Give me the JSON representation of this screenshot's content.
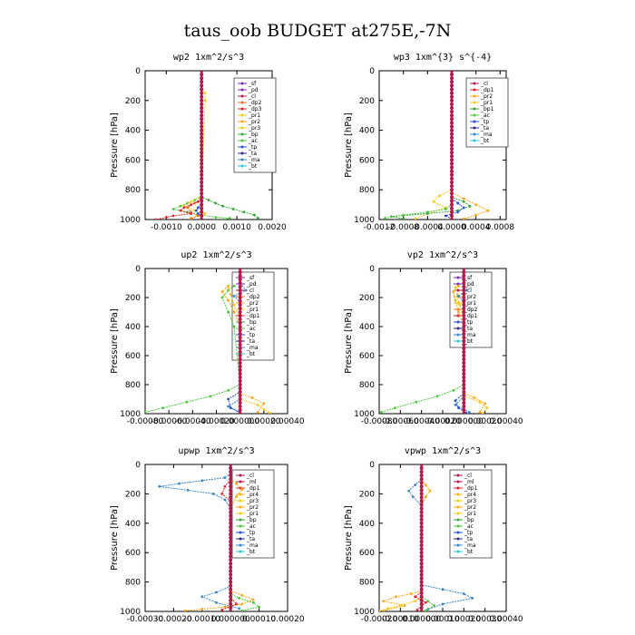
{
  "figure_title": "taus_oob  BUDGET at275E,-7N",
  "colors": {
    "sf": "#7a28b8",
    "pd": "#7a28b8",
    "cl": "#b01c4a",
    "ml": "#b01c4a",
    "dp1": "#e0242e",
    "dp2": "#f0722a",
    "dp3": "#e0242e",
    "dp4": "#e0242e",
    "pr1": "#f8c820",
    "pr2": "#f8a818",
    "pr3": "#e8d020",
    "pr4": "#f0b020",
    "bp": "#38a838",
    "bp1": "#38a838",
    "ac": "#50c840",
    "tp": "#2850d8",
    "ta": "#282890",
    "ma": "#3888c8",
    "bt": "#28c8e0"
  },
  "chart_data": [
    {
      "type": "line",
      "title": "wp2  1xm^2/s^3",
      "ylabel": "Pressure [hPa]",
      "xlim": [
        -0.0016,
        0.002
      ],
      "ylim": [
        1000,
        0
      ],
      "xticks": [
        -0.001,
        0.0,
        0.001,
        0.002
      ],
      "xtick_labels": [
        "-0.0010",
        "0.0000",
        "0.0010",
        "0.0020"
      ],
      "yticks": [
        0,
        200,
        400,
        600,
        800,
        1000
      ],
      "ytick_labels": [
        "0",
        "200",
        "400",
        "600",
        "800",
        "1000"
      ],
      "legend": [
        "_sf",
        "_pd",
        "_cl",
        "_dp2",
        "_dp3",
        "_pr1",
        "_pr2",
        "_pr3",
        "_bp",
        "_ac",
        "_tp",
        "_ta",
        "_ma",
        "_bt"
      ],
      "series": [
        {
          "name": "_bp",
          "key": "bp",
          "x": [
            0,
            0,
            0.0002,
            0.0004,
            0.0006,
            0.0009,
            0.0012,
            0.0015,
            0.0016
          ],
          "y": [
            0,
            850,
            870,
            890,
            910,
            930,
            950,
            970,
            990
          ]
        },
        {
          "name": "_ac",
          "key": "ac",
          "x": [
            0,
            0,
            -0.0002,
            -0.0004,
            -0.0006,
            -0.0008,
            -0.0004,
            0,
            0.0004,
            0.0008,
            0.0006
          ],
          "y": [
            0,
            845,
            870,
            890,
            910,
            930,
            950,
            970,
            985,
            990,
            1000
          ]
        },
        {
          "name": "_pr1",
          "key": "pr1",
          "x": [
            0,
            0.0001,
            0.0001,
            0,
            -0.0003,
            -0.0005,
            -0.0002,
            0.0001,
            -0.0003
          ],
          "y": [
            120,
            150,
            200,
            840,
            880,
            910,
            940,
            960,
            990
          ]
        },
        {
          "name": "_dp2",
          "key": "dp2",
          "x": [
            0,
            0,
            -0.0002,
            -0.0004,
            -0.0003,
            -0.0001,
            -0.0003
          ],
          "y": [
            0,
            860,
            890,
            920,
            950,
            975,
            995
          ]
        },
        {
          "name": "_dp3",
          "key": "dp3",
          "x": [
            0,
            0,
            -0.0001,
            -0.0003,
            -0.0005,
            -0.0006,
            -0.0003,
            -0.0008,
            -0.001,
            -0.0013
          ],
          "y": [
            0,
            850,
            880,
            900,
            920,
            940,
            960,
            975,
            985,
            1000
          ]
        },
        {
          "name": "_tp",
          "key": "tp",
          "x": [
            0,
            0,
            -0.0001,
            -0.00015,
            -0.0001,
            0,
            0
          ],
          "y": [
            0,
            900,
            920,
            940,
            960,
            980,
            1000
          ]
        },
        {
          "name": "_cl",
          "key": "cl",
          "x": [
            0,
            0
          ],
          "y": [
            0,
            1000
          ]
        }
      ]
    },
    {
      "type": "line",
      "title": "wp3  1xm^{3} s^{-4}",
      "ylabel": "Pressure [hPa]",
      "xlim": [
        -0.0012,
        0.0009
      ],
      "ylim": [
        1000,
        0
      ],
      "xticks": [
        -0.0012,
        -0.0008,
        -0.0004,
        0.0,
        0.0004,
        0.0008
      ],
      "xtick_labels": [
        "-0.0012",
        "-0.0008",
        "-0.0004",
        "0.0000",
        "0.0004",
        "0.0008"
      ],
      "yticks": [
        0,
        200,
        400,
        600,
        800,
        1000
      ],
      "ytick_labels": [
        "0",
        "200",
        "400",
        "600",
        "800",
        "1000"
      ],
      "legend": [
        "_cl",
        "_dp1",
        "_pr2",
        "_pr1",
        "_bp1",
        "_ac",
        "_tp",
        "_ta",
        "_ma",
        "_bt"
      ],
      "series": [
        {
          "name": "_pr2",
          "key": "pr2",
          "x": [
            0,
            0,
            0.0002,
            0.0004,
            0.0006,
            0.0004,
            0.0002
          ],
          "y": [
            0,
            820,
            860,
            900,
            940,
            970,
            995
          ]
        },
        {
          "name": "_pr1",
          "key": "pr1",
          "x": [
            0,
            0,
            -0.0002,
            -0.0003,
            -0.0001,
            -0.0004,
            -0.0006
          ],
          "y": [
            0,
            800,
            840,
            880,
            920,
            960,
            995
          ]
        },
        {
          "name": "_bp1",
          "key": "bp1",
          "x": [
            0,
            0,
            0.0002,
            0.0003,
            0.0001,
            -0.0004,
            -0.001,
            -0.0008
          ],
          "y": [
            0,
            850,
            880,
            910,
            940,
            960,
            980,
            995
          ]
        },
        {
          "name": "_ac",
          "key": "ac",
          "x": [
            0,
            0,
            -0.0001,
            -0.0004,
            -0.0008,
            -0.0011
          ],
          "y": [
            0,
            900,
            930,
            950,
            970,
            990
          ]
        },
        {
          "name": "_tp",
          "key": "tp",
          "x": [
            0,
            0,
            0.0001,
            0.0002,
            0.0001,
            -0.0001,
            0
          ],
          "y": [
            0,
            860,
            890,
            920,
            950,
            975,
            995
          ]
        },
        {
          "name": "_cl",
          "key": "cl",
          "x": [
            0,
            0
          ],
          "y": [
            0,
            1000
          ]
        }
      ]
    },
    {
      "type": "line",
      "title": "up2  1xm^2/s^3",
      "ylabel": "Pressure [hPa]",
      "xlim": [
        -0.0008,
        0.0004
      ],
      "ylim": [
        1000,
        0
      ],
      "xticks": [
        -0.0008,
        -0.0006,
        -0.0004,
        -0.0002,
        0.0,
        0.0002,
        0.0004
      ],
      "xtick_labels": [
        "-0.00080",
        "-0.00060",
        "-0.00040",
        "-0.00020",
        "0.000000",
        "0.00020",
        "0.00040"
      ],
      "yticks": [
        0,
        200,
        400,
        600,
        800,
        1000
      ],
      "ytick_labels": [
        "0",
        "200",
        "400",
        "600",
        "800",
        "1000"
      ],
      "legend": [
        "_sf",
        "_pd",
        "_cl",
        "_dp2",
        "_pr2",
        "_pr1",
        "_dp1",
        "_bp",
        "_ac",
        "_tp",
        "_ta",
        "_ma",
        "_bt"
      ],
      "series": [
        {
          "name": "_ac",
          "key": "ac",
          "x": [
            -5e-05,
            -0.0001,
            -0.00015,
            -0.0001,
            -5e-05,
            0,
            -0.0001,
            -0.00025,
            -0.00045,
            -0.00065,
            -0.0008
          ],
          "y": [
            120,
            150,
            200,
            300,
            400,
            800,
            840,
            880,
            920,
            960,
            990
          ]
        },
        {
          "name": "_pr2",
          "key": "pr2",
          "x": [
            -0.0001,
            -0.00015,
            -0.0001,
            -5e-05,
            0,
            0,
            0.0001,
            0.0002,
            0.00015
          ],
          "y": [
            120,
            160,
            220,
            300,
            400,
            860,
            890,
            930,
            990
          ]
        },
        {
          "name": "_pr1",
          "key": "pr1",
          "x": [
            -0.0001,
            -8e-05,
            -5e-05,
            0,
            0,
            0.00015,
            0.0002,
            0.00025
          ],
          "y": [
            130,
            180,
            250,
            350,
            900,
            940,
            970,
            995
          ]
        },
        {
          "name": "_ma",
          "key": "ma",
          "x": [
            0,
            5e-05,
            -5e-05,
            0,
            0,
            -0.0001,
            0
          ],
          "y": [
            100,
            150,
            190,
            230,
            900,
            950,
            990
          ]
        },
        {
          "name": "_tp",
          "key": "tp",
          "x": [
            0,
            0,
            -0.0001,
            -8e-05,
            0
          ],
          "y": [
            0,
            850,
            900,
            960,
            995
          ]
        },
        {
          "name": "_cl",
          "key": "cl",
          "x": [
            0,
            0
          ],
          "y": [
            0,
            1000
          ]
        }
      ]
    },
    {
      "type": "line",
      "title": "vp2  1xm^2/s^3",
      "ylabel": "Pressure [hPa]",
      "xlim": [
        -0.0008,
        0.0004
      ],
      "ylim": [
        1000,
        0
      ],
      "xticks": [
        -0.0008,
        -0.0006,
        -0.0004,
        -0.0002,
        0.0,
        0.0002,
        0.0004
      ],
      "xtick_labels": [
        "-0.00080",
        "-0.00060",
        "-0.00040",
        "-0.00020",
        "0.000000",
        "0.00020",
        "0.00040"
      ],
      "yticks": [
        0,
        200,
        400,
        600,
        800,
        1000
      ],
      "ytick_labels": [
        "0",
        "200",
        "400",
        "600",
        "800",
        "1000"
      ],
      "legend": [
        "_sf",
        "_pd",
        "_cl",
        "_pr2",
        "_pr1",
        "_dp2",
        "_dp1",
        "_tp",
        "_ta",
        "_ma",
        "_bt"
      ],
      "series": [
        {
          "name": "_ac",
          "key": "ac",
          "x": [
            0,
            0,
            -0.0001,
            -0.00025,
            -0.00045,
            -0.00065,
            -0.00078
          ],
          "y": [
            0,
            800,
            840,
            880,
            920,
            960,
            990
          ]
        },
        {
          "name": "_pr2",
          "key": "pr2",
          "x": [
            -5e-05,
            -0.0001,
            -8e-05,
            -5e-05,
            0,
            0,
            0.0001,
            0.0002,
            0.00015
          ],
          "y": [
            120,
            160,
            220,
            300,
            400,
            860,
            890,
            930,
            990
          ]
        },
        {
          "name": "_pr1",
          "key": "pr1",
          "x": [
            -8e-05,
            -6e-05,
            -4e-05,
            0,
            0,
            0.00015,
            0.00022,
            0.00018
          ],
          "y": [
            130,
            180,
            250,
            350,
            880,
            920,
            960,
            995
          ]
        },
        {
          "name": "_ma",
          "key": "ma",
          "x": [
            0,
            3e-05,
            -5e-05,
            0,
            0,
            -8e-05,
            5e-05
          ],
          "y": [
            100,
            150,
            190,
            230,
            880,
            940,
            990
          ]
        },
        {
          "name": "_tp",
          "key": "tp",
          "x": [
            0,
            0,
            -8e-05,
            -5e-05,
            2e-05
          ],
          "y": [
            0,
            860,
            910,
            960,
            995
          ]
        },
        {
          "name": "_cl",
          "key": "cl",
          "x": [
            0,
            0
          ],
          "y": [
            0,
            1000
          ]
        }
      ]
    },
    {
      "type": "line",
      "title": "upwp  1xm^2/s^3",
      "ylabel": "Pressure [hPa]",
      "xlim": [
        -0.0003,
        0.0002
      ],
      "ylim": [
        1000,
        0
      ],
      "xticks": [
        -0.0003,
        -0.0002,
        -0.0001,
        0.0,
        0.0001,
        0.0002
      ],
      "xtick_labels": [
        "-0.00030",
        "-0.00020",
        "-0.00010",
        "0.000000",
        "0.00010",
        "0.00020"
      ],
      "yticks": [
        0,
        200,
        400,
        600,
        800,
        1000
      ],
      "ytick_labels": [
        "0",
        "200",
        "400",
        "600",
        "800",
        "1000"
      ],
      "legend": [
        "_cl",
        "_ml",
        "_dp1",
        "_pr4",
        "_pr3",
        "_pr2",
        "_pr1",
        "_bp",
        "_ac",
        "_tp",
        "_ta",
        "_ma",
        "_bt"
      ],
      "series": [
        {
          "name": "_ma",
          "key": "ma",
          "x": [
            0,
            -2e-05,
            -0.0001,
            -0.00018,
            -0.00025,
            -0.00015,
            -6e-05,
            -2e-05,
            0,
            0,
            -5e-05,
            -0.0001,
            -5e-05,
            3e-05
          ],
          "y": [
            60,
            90,
            110,
            130,
            150,
            175,
            200,
            240,
            300,
            830,
            870,
            900,
            940,
            980
          ]
        },
        {
          "name": "_pr2",
          "key": "pr2",
          "x": [
            0,
            2e-05,
            4e-05,
            2e-05,
            0,
            0,
            4e-05,
            8e-05,
            4e-05,
            -2e-05,
            -0.0001,
            -0.00016
          ],
          "y": [
            100,
            130,
            170,
            220,
            300,
            860,
            890,
            920,
            950,
            970,
            985,
            995
          ]
        },
        {
          "name": "_ac",
          "key": "ac",
          "x": [
            0,
            0,
            3e-05,
            8e-05,
            0.0001,
            4e-05
          ],
          "y": [
            0,
            880,
            910,
            940,
            970,
            995
          ]
        },
        {
          "name": "_dp1",
          "key": "dp1",
          "x": [
            0,
            -2e-05,
            -3e-05,
            0,
            0,
            2e-05,
            -3e-05
          ],
          "y": [
            100,
            150,
            200,
            250,
            900,
            950,
            990
          ]
        },
        {
          "name": "_cl",
          "key": "cl",
          "x": [
            0,
            0
          ],
          "y": [
            0,
            1000
          ]
        }
      ]
    },
    {
      "type": "line",
      "title": "vpwp  1xm^2/s^3",
      "ylabel": "Pressure [hPa]",
      "xlim": [
        -0.0002,
        0.0004
      ],
      "ylim": [
        1000,
        0
      ],
      "xticks": [
        -0.0002,
        -0.0001,
        0.0,
        0.0001,
        0.0002,
        0.0003,
        0.0004
      ],
      "xtick_labels": [
        "-0.00020",
        "-0.00010",
        "0.000000",
        "0.00010",
        "0.00020",
        "0.00030",
        "0.00040"
      ],
      "yticks": [
        0,
        200,
        400,
        600,
        800,
        1000
      ],
      "ytick_labels": [
        "0",
        "200",
        "400",
        "600",
        "800",
        "1000"
      ],
      "legend": [
        "_cl",
        "_ml",
        "_dp1",
        "_pr4",
        "_pr3",
        "_pr2",
        "_pr1",
        "_bp",
        "_ac",
        "_tp",
        "_ta",
        "_ma",
        "_bt"
      ],
      "series": [
        {
          "name": "_ma",
          "key": "ma",
          "x": [
            0,
            -3e-05,
            -6e-05,
            -4e-05,
            0,
            0,
            0.0001,
            0.0002,
            0.00024,
            0.0001,
            3e-05
          ],
          "y": [
            100,
            140,
            180,
            220,
            280,
            820,
            850,
            880,
            910,
            950,
            985
          ]
        },
        {
          "name": "_pr2",
          "key": "pr2",
          "x": [
            0,
            2e-05,
            4e-05,
            2e-05,
            0,
            0,
            -5e-05,
            -0.00012,
            -0.00018,
            -8e-05,
            -0.00018
          ],
          "y": [
            100,
            140,
            180,
            220,
            280,
            860,
            880,
            900,
            930,
            960,
            995
          ]
        },
        {
          "name": "_pr1",
          "key": "pr1",
          "x": [
            0,
            0,
            -3e-05,
            -0.0001,
            -0.00016,
            -0.0002
          ],
          "y": [
            0,
            900,
            930,
            960,
            980,
            1000
          ]
        },
        {
          "name": "_ac",
          "key": "ac",
          "x": [
            0,
            0,
            3e-05,
            6e-05,
            2e-05
          ],
          "y": [
            0,
            900,
            930,
            960,
            995
          ]
        },
        {
          "name": "_dp1",
          "key": "dp1",
          "x": [
            0,
            0,
            -3e-05,
            2e-05,
            -2e-05
          ],
          "y": [
            0,
            870,
            900,
            940,
            990
          ]
        },
        {
          "name": "_cl",
          "key": "cl",
          "x": [
            0,
            0
          ],
          "y": [
            0,
            1000
          ]
        }
      ]
    }
  ]
}
